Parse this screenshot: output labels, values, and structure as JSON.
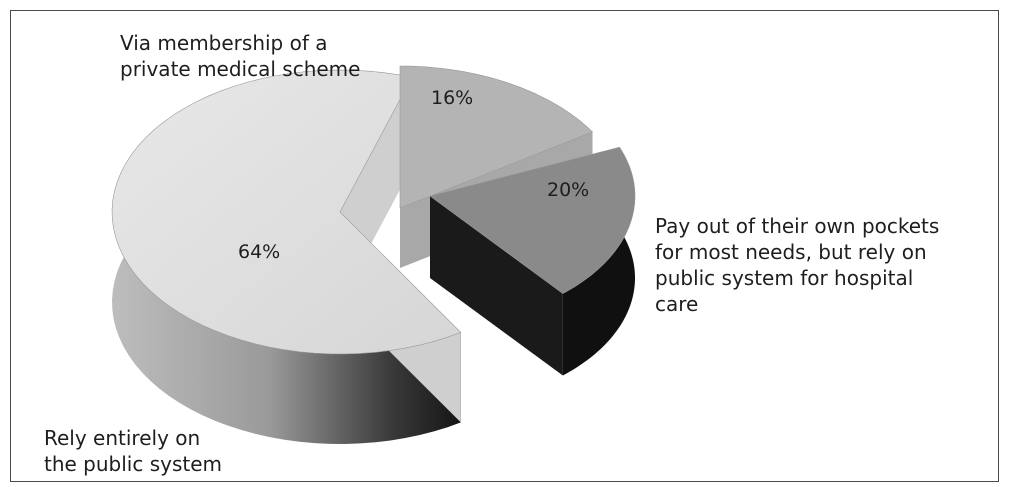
{
  "chart_data": {
    "type": "pie",
    "title": "",
    "slices": [
      {
        "label_lines": [
          "Rely entirely on",
          "the public system"
        ],
        "value": 64,
        "value_label": "64%",
        "color": "#dcdcdc"
      },
      {
        "label_lines": [
          "Via membership of a",
          "private medical scheme"
        ],
        "value": 16,
        "value_label": "16%",
        "color": "#b4b4b4"
      },
      {
        "label_lines": [
          "Pay out of their own pockets",
          "for most needs, but rely on",
          "public system for hospital",
          "care"
        ],
        "value": 20,
        "value_label": "20%",
        "color": "#8a8a8a"
      }
    ],
    "style": "3d-exploded"
  }
}
